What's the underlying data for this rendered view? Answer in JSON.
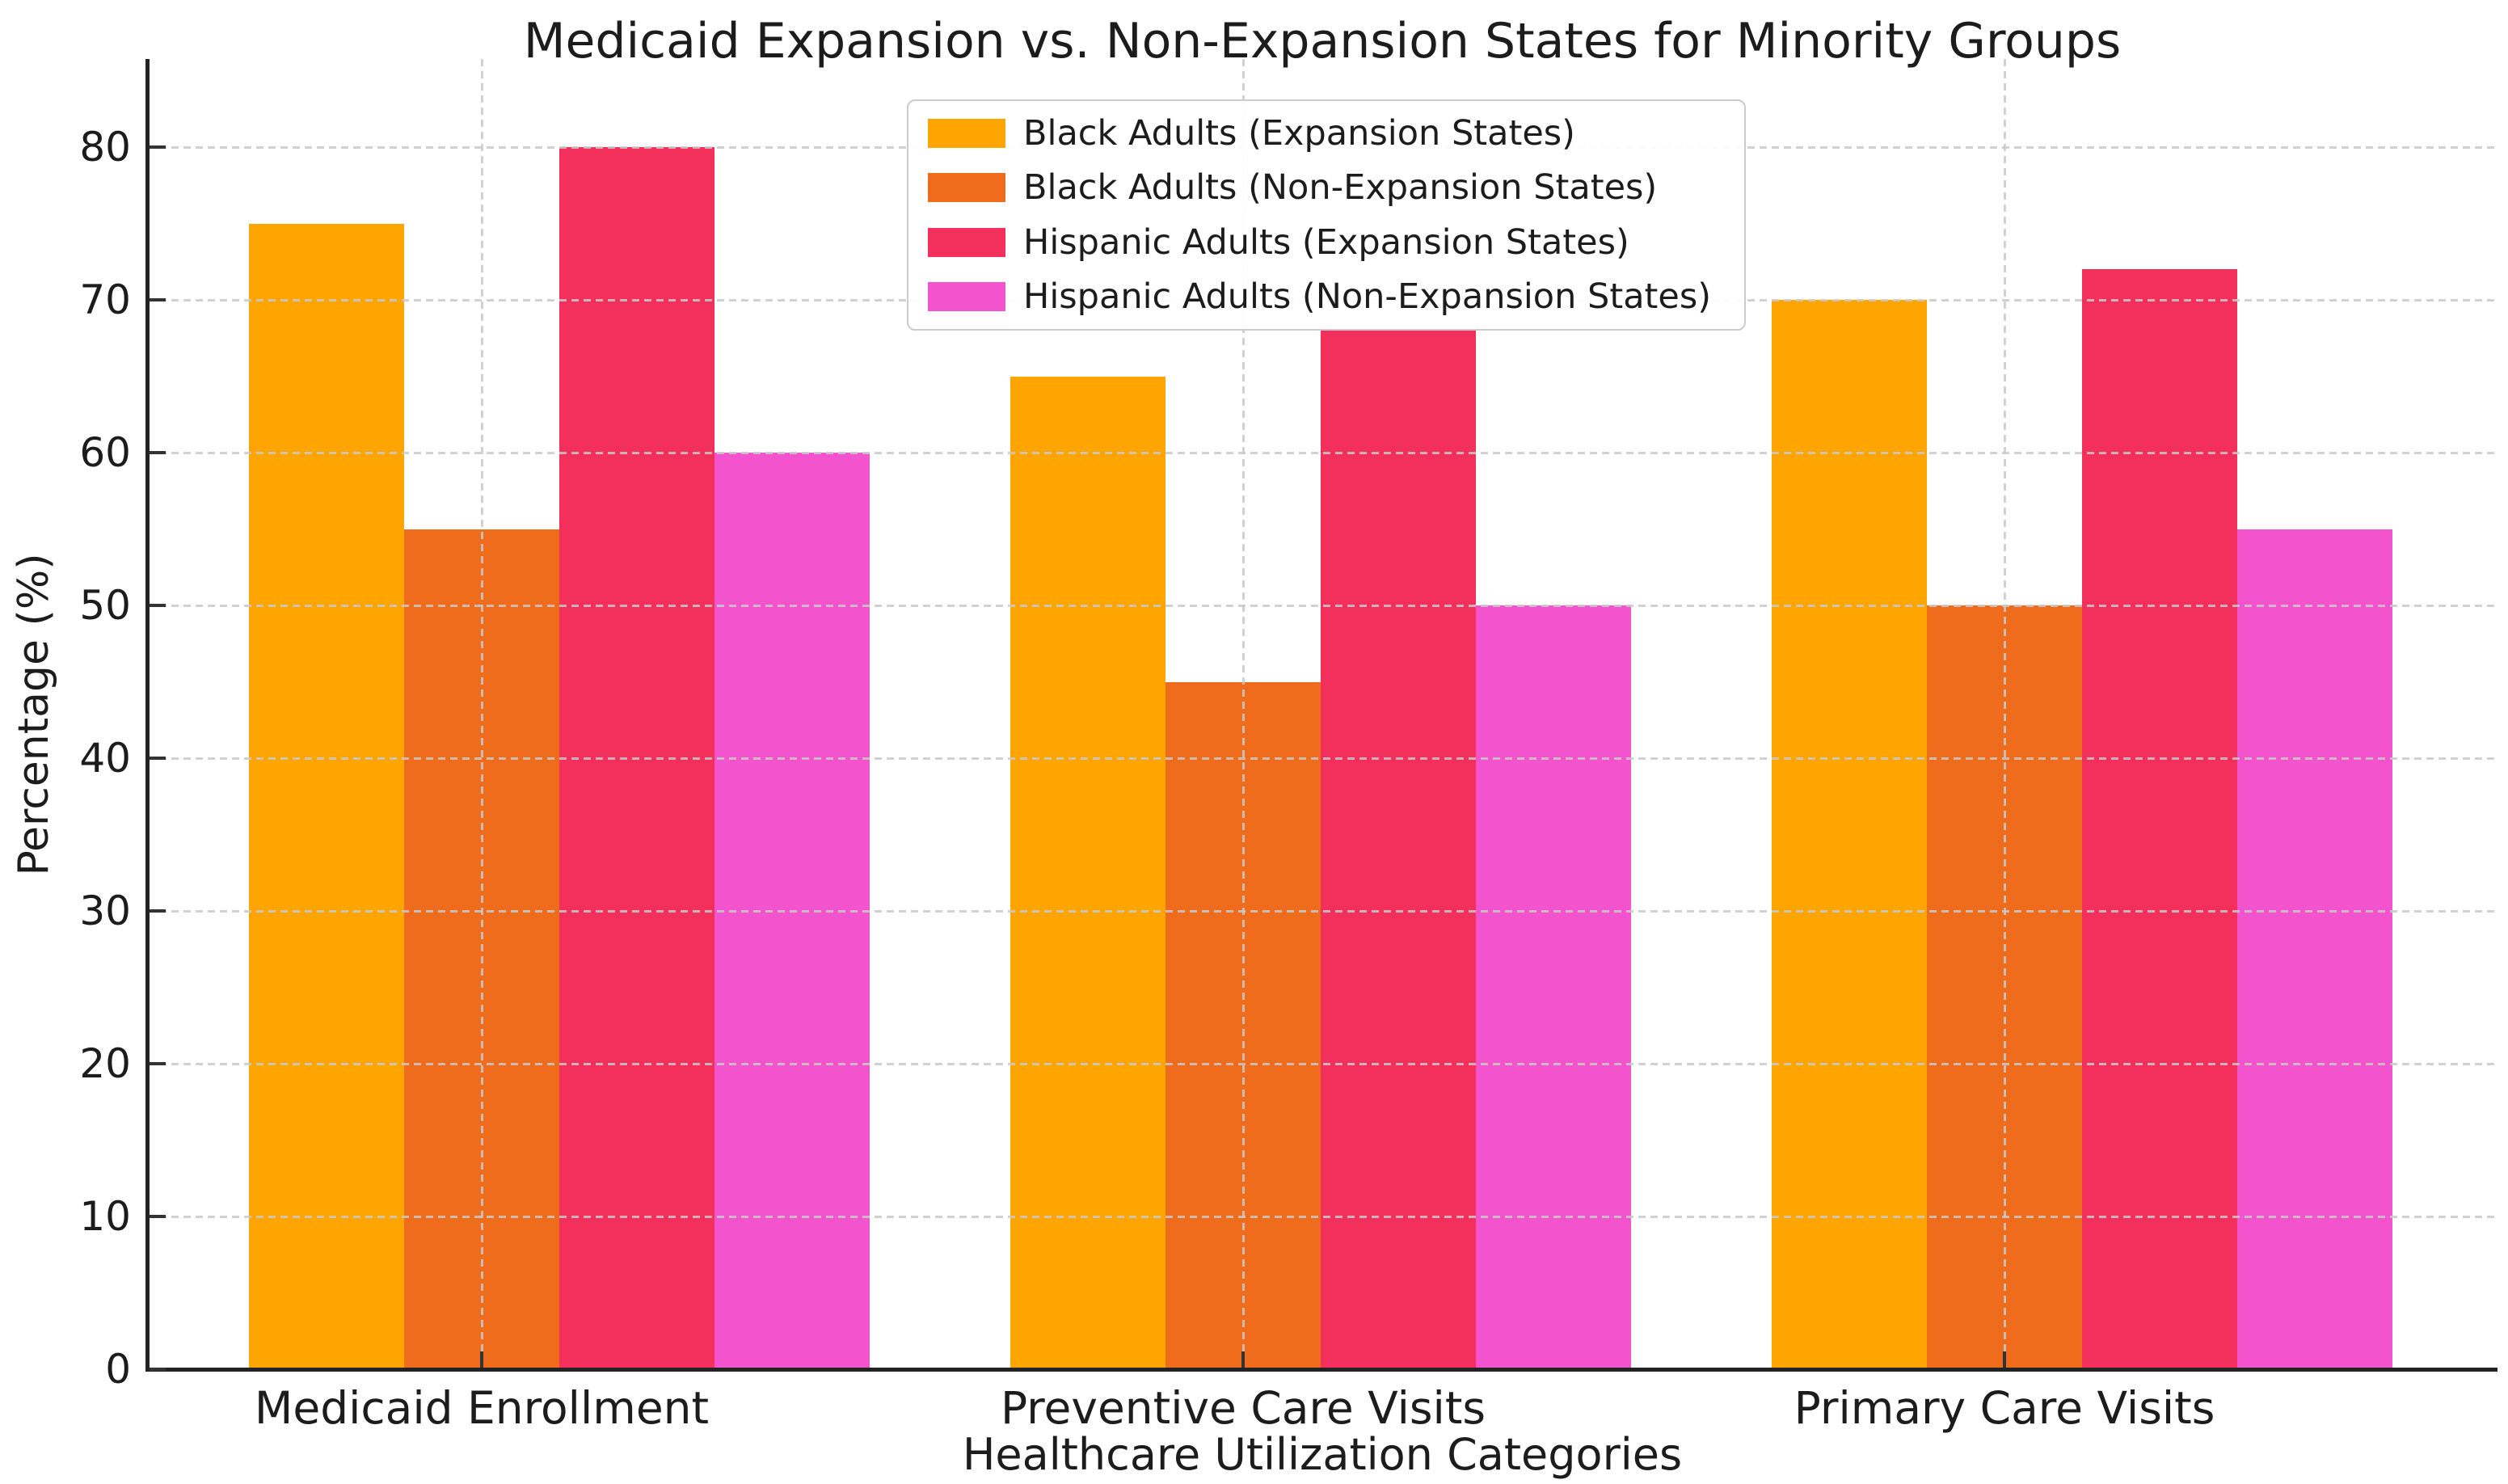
{
  "chart_data": {
    "type": "bar",
    "title": "Medicaid Expansion vs. Non-Expansion States for Minority Groups",
    "xlabel": "Healthcare Utilization Categories",
    "ylabel": "Percentage (%)",
    "categories": [
      "Medicaid Enrollment",
      "Preventive Care Visits",
      "Primary Care Visits"
    ],
    "series": [
      {
        "name": "Black Adults (Expansion States)",
        "color": "#FFA502",
        "values": [
          75,
          65,
          70
        ]
      },
      {
        "name": "Black Adults (Non-Expansion States)",
        "color": "#EF6C1C",
        "values": [
          55,
          45,
          50
        ]
      },
      {
        "name": "Hispanic Adults (Expansion States)",
        "color": "#F3305C",
        "values": [
          80,
          68,
          72
        ]
      },
      {
        "name": "Hispanic Adults (Non-Expansion States)",
        "color": "#F353CC",
        "values": [
          60,
          50,
          55
        ]
      }
    ],
    "ylim": [
      0,
      85
    ],
    "yticks": [
      0,
      10,
      20,
      30,
      40,
      50,
      60,
      70,
      80
    ],
    "legend_position": "upper left inside plot",
    "grid": "dashed gray, horizontal and vertical, drawn above bars",
    "colors": {
      "text": "#1c1c1c",
      "spine": "#222222",
      "grid": "#c9c9c9",
      "legend_border": "#cccccc",
      "background": "#ffffff"
    }
  }
}
